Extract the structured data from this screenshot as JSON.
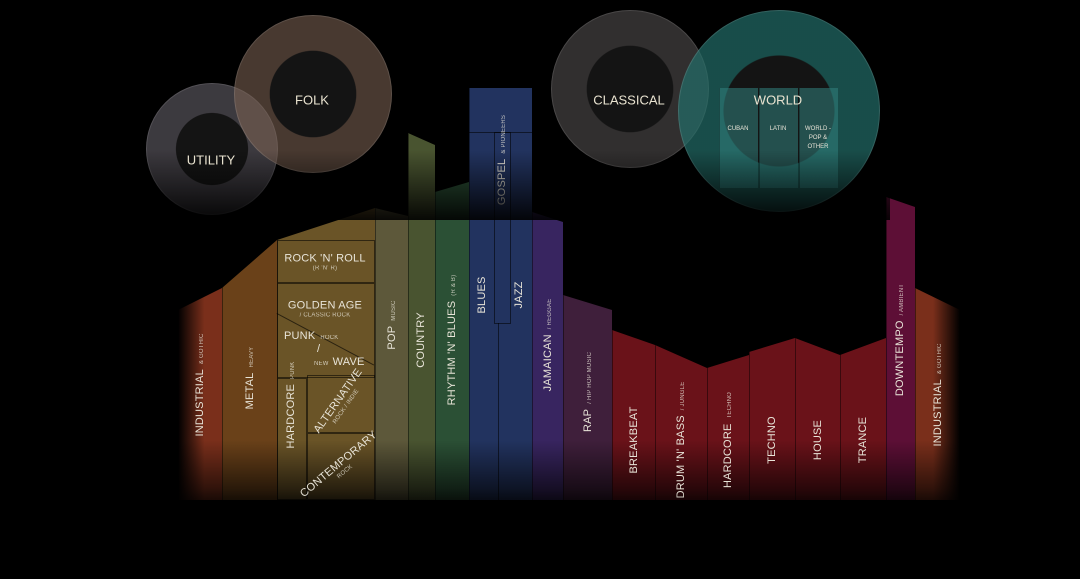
{
  "colors": {
    "industrial": "#7a2f1b",
    "metal": "#6a4119",
    "rock": "#6a5427",
    "pop": "#5d583a",
    "country": "#495430",
    "rnb": "#2b5035",
    "blues": "#22335f",
    "jamaican": "#382560",
    "rap": "#3f1f3b",
    "electronic": "#6a1219",
    "downtempo": "#5d0f36",
    "world": "#2a6b66",
    "circle": "#5a5552"
  },
  "circles": {
    "utility": "UTILITY",
    "folk": "FOLK",
    "classical": "CLASSICAL",
    "world": "WORLD"
  },
  "world_subs": {
    "cuban": "CUBAN",
    "latin": "LATIN",
    "other": "WORLD - POP & OTHER"
  },
  "genres": {
    "industrial_left": {
      "label": "INDUSTRIAL",
      "sub": "& GOTHIC"
    },
    "metal": {
      "label": "METAL",
      "sub": "HEAVY"
    },
    "rock_n_roll": {
      "label": "ROCK 'N' ROLL",
      "sub": "(R 'N' R)"
    },
    "golden_age": {
      "label": "GOLDEN AGE",
      "sub": "/ CLASSIC ROCK"
    },
    "punk": {
      "label": "PUNK",
      "sub": "ROCK"
    },
    "new_wave": {
      "label": "WAVE",
      "sub": "NEW",
      "slash": "/"
    },
    "hardcore_punk": {
      "label": "HARDCORE",
      "sub": "PUNK"
    },
    "alternative": {
      "label": "ALTERNATIVE",
      "sub": "ROCK / INDIE"
    },
    "contemporary": {
      "label": "CONTEMPORARY",
      "sub": "ROCK"
    },
    "pop": {
      "label": "POP",
      "sub": "MUSIC"
    },
    "country": {
      "label": "COUNTRY",
      "sub": ""
    },
    "rnb": {
      "label": "RHYTHM 'N' BLUES",
      "sub": "(R & B)"
    },
    "blues": {
      "label": "BLUES",
      "sub": ""
    },
    "gospel": {
      "label": "GOSPEL",
      "sub": "& PIONEERS"
    },
    "jazz": {
      "label": "JAZZ",
      "sub": ""
    },
    "jamaican": {
      "label": "JAMAICAN",
      "sub": "/ REGGAE"
    },
    "rap": {
      "label": "RAP",
      "sub": "/ HIP HOP MUSIC"
    },
    "breakbeat": {
      "label": "BREAKBEAT",
      "sub": ""
    },
    "drum_n_bass": {
      "label": "DRUM 'N' BASS",
      "sub": "/ JUNGLE"
    },
    "hardcore_techno": {
      "label": "HARDCORE",
      "sub": "TECHNO"
    },
    "techno": {
      "label": "TECHNO",
      "sub": ""
    },
    "house": {
      "label": "HOUSE",
      "sub": ""
    },
    "trance": {
      "label": "TRANCE",
      "sub": ""
    },
    "downtempo": {
      "label": "DOWNTEMPO",
      "sub": "/ AMBIENT"
    },
    "industrial_right": {
      "label": "INDUSTRIAL",
      "sub": "& GOTHIC"
    }
  }
}
